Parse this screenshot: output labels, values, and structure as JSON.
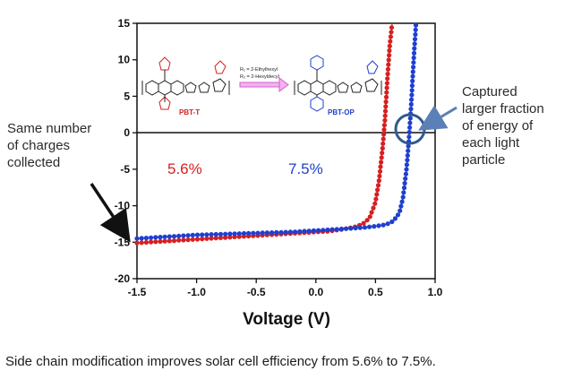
{
  "chart_data": {
    "type": "line",
    "xlabel": "Voltage (V)",
    "ylabel": "",
    "xlim": [
      -1.5,
      1.0
    ],
    "ylim": [
      -20,
      15
    ],
    "x_ticks": [
      "-1.5",
      "-1.0",
      "-0.5",
      "0.0",
      "0.5",
      "1.0"
    ],
    "y_ticks": [
      "15",
      "10",
      "5",
      "0",
      "-5",
      "-10",
      "-15",
      "-20"
    ],
    "grid": false,
    "series": [
      {
        "name": "PBT-T",
        "color": "#d62020",
        "efficiency_label": "5.6%",
        "x": [
          -1.5,
          -1.4,
          -1.3,
          -1.2,
          -1.1,
          -1.0,
          -0.9,
          -0.8,
          -0.7,
          -0.6,
          -0.5,
          -0.4,
          -0.3,
          -0.2,
          -0.1,
          0.0,
          0.1,
          0.2,
          0.3,
          0.35,
          0.4,
          0.45,
          0.5,
          0.53,
          0.56,
          0.58,
          0.6,
          0.62,
          0.64
        ],
        "y": [
          -15.1,
          -15.0,
          -14.9,
          -14.8,
          -14.7,
          -14.6,
          -14.5,
          -14.4,
          -14.3,
          -14.2,
          -14.1,
          -14.0,
          -13.9,
          -13.8,
          -13.7,
          -13.6,
          -13.5,
          -13.3,
          -13.0,
          -12.8,
          -12.4,
          -11.7,
          -9.5,
          -6.5,
          -2.0,
          2.0,
          7.5,
          12.0,
          15.0
        ]
      },
      {
        "name": "PBT-OP",
        "color": "#1f3fd0",
        "efficiency_label": "7.5%",
        "x": [
          -1.5,
          -1.4,
          -1.3,
          -1.2,
          -1.1,
          -1.0,
          -0.9,
          -0.8,
          -0.7,
          -0.6,
          -0.5,
          -0.4,
          -0.3,
          -0.2,
          -0.1,
          0.0,
          0.1,
          0.2,
          0.3,
          0.4,
          0.5,
          0.55,
          0.6,
          0.65,
          0.7,
          0.73,
          0.76,
          0.78,
          0.8,
          0.82,
          0.84
        ],
        "y": [
          -14.5,
          -14.4,
          -14.3,
          -14.2,
          -14.1,
          -14.0,
          -13.95,
          -13.9,
          -13.85,
          -13.8,
          -13.75,
          -13.7,
          -13.65,
          -13.6,
          -13.5,
          -13.4,
          -13.3,
          -13.2,
          -13.1,
          -13.0,
          -12.8,
          -12.7,
          -12.5,
          -12.1,
          -11.0,
          -9.0,
          -5.0,
          -1.0,
          4.0,
          10.0,
          15.0
        ]
      }
    ],
    "annotations": [
      {
        "text": "5.6%",
        "color": "#d62020"
      },
      {
        "text": "7.5%",
        "color": "#1f3fd0"
      }
    ]
  },
  "inset": {
    "left_name": "PBT-T",
    "right_name": "PBT-OP",
    "r1_def": "R₁ = 2-Ethylhexyl",
    "r2_def": "R₂ = 2-Hexyldecyl"
  },
  "annotation_left": [
    "Same number",
    "of charges",
    "collected"
  ],
  "annotation_right": [
    "Captured",
    "larger fraction",
    "of energy of",
    "each light",
    "particle"
  ],
  "caption": "Side chain modification  improves solar cell efficiency from 5.6% to 7.5%."
}
